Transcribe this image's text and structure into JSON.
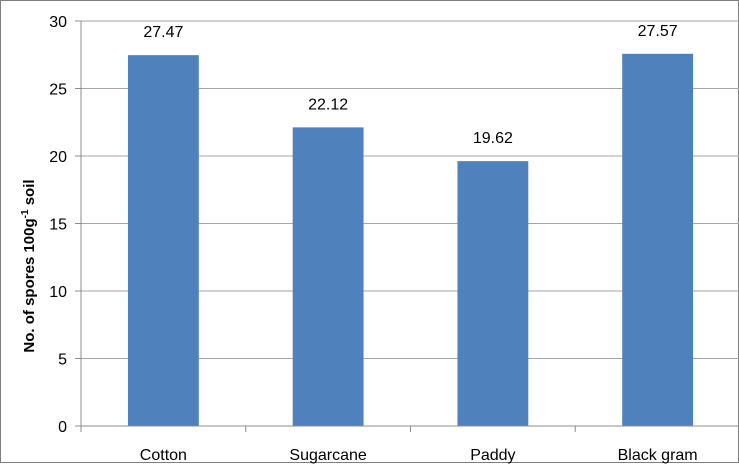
{
  "chart_data": {
    "type": "bar",
    "categories": [
      "Cotton",
      "Sugarcane",
      "Paddy",
      "Black gram"
    ],
    "values": [
      27.47,
      22.12,
      19.62,
      27.57
    ],
    "value_labels": [
      "27.47",
      "22.12",
      "19.62",
      "27.57"
    ],
    "title": "",
    "xlabel": "",
    "ylabel_main": "No. of spores 100g",
    "ylabel_sup": "-1",
    "ylabel_tail": " soil",
    "ylim": [
      0,
      30
    ],
    "yticks": [
      0,
      5,
      10,
      15,
      20,
      25,
      30
    ],
    "ytick_labels": [
      "0",
      "5",
      "10",
      "15",
      "20",
      "25",
      "30"
    ],
    "grid": true,
    "bar_color": "#4f81bd",
    "grid_color": "#a6a6a6"
  }
}
